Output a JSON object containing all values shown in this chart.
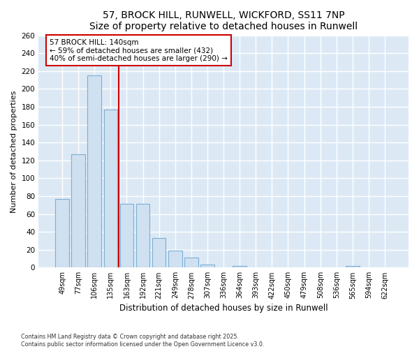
{
  "title_line1": "57, BROCK HILL, RUNWELL, WICKFORD, SS11 7NP",
  "title_line2": "Size of property relative to detached houses in Runwell",
  "xlabel": "Distribution of detached houses by size in Runwell",
  "ylabel": "Number of detached properties",
  "categories": [
    "49sqm",
    "77sqm",
    "106sqm",
    "135sqm",
    "163sqm",
    "192sqm",
    "221sqm",
    "249sqm",
    "278sqm",
    "307sqm",
    "336sqm",
    "364sqm",
    "393sqm",
    "422sqm",
    "450sqm",
    "479sqm",
    "508sqm",
    "536sqm",
    "565sqm",
    "594sqm",
    "622sqm"
  ],
  "values": [
    77,
    127,
    215,
    177,
    71,
    71,
    33,
    19,
    11,
    3,
    0,
    2,
    0,
    0,
    0,
    0,
    0,
    0,
    2,
    0,
    0
  ],
  "bar_color": "#cfe0f0",
  "bar_edge_color": "#7aafd4",
  "red_line_x": 3.5,
  "annotation_text": "57 BROCK HILL: 140sqm\n← 59% of detached houses are smaller (432)\n40% of semi-detached houses are larger (290) →",
  "annotation_box_color": "#ffffff",
  "annotation_box_edge": "#cc0000",
  "red_line_color": "#cc0000",
  "fig_bg_color": "#ffffff",
  "plot_bg_color": "#dce9f5",
  "grid_color": "#ffffff",
  "footer_line1": "Contains HM Land Registry data © Crown copyright and database right 2025.",
  "footer_line2": "Contains public sector information licensed under the Open Government Licence v3.0.",
  "ylim": [
    0,
    260
  ],
  "yticks": [
    0,
    20,
    40,
    60,
    80,
    100,
    120,
    140,
    160,
    180,
    200,
    220,
    240,
    260
  ]
}
